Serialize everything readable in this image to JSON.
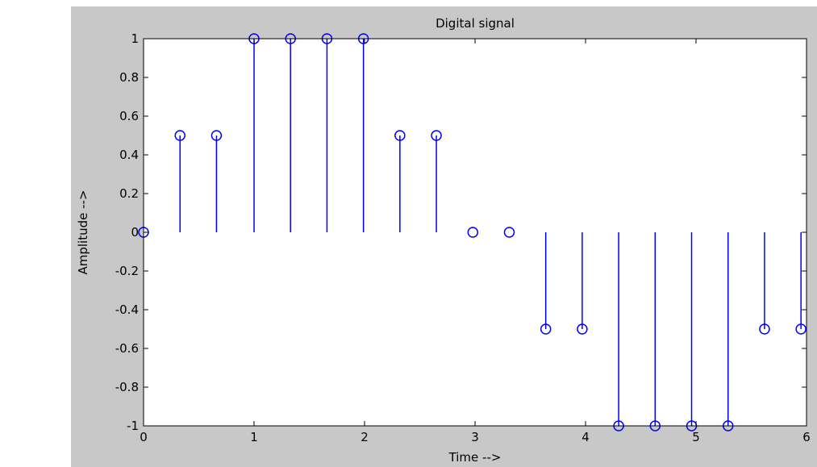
{
  "chart_data": {
    "type": "stem",
    "title": "Digital signal",
    "xlabel": "Time  -->",
    "ylabel": "Amplitude  -->",
    "xlim": [
      0,
      6
    ],
    "ylim": [
      -1,
      1
    ],
    "x_ticks": [
      0,
      1,
      2,
      3,
      4,
      5,
      6
    ],
    "y_ticks": [
      -1,
      -0.8,
      -0.6,
      -0.4,
      -0.2,
      0,
      0.2,
      0.4,
      0.6,
      0.8,
      1
    ],
    "y_tick_labels": [
      "-1",
      "-0.8",
      "-0.6",
      "-0.4",
      "-0.2",
      "0",
      "0.2",
      "0.4",
      "0.6",
      "0.8",
      "1"
    ],
    "x_tick_labels": [
      "0",
      "1",
      "2",
      "3",
      "4",
      "5",
      "6"
    ],
    "grid": false,
    "series": [
      {
        "x": [
          0,
          0.33,
          0.66,
          1.0,
          1.33,
          1.66,
          1.99,
          2.32,
          2.65,
          2.98,
          3.31,
          3.64,
          3.97,
          4.3,
          4.63,
          4.96,
          5.29,
          5.62,
          5.95
        ],
        "values": [
          0,
          0.5,
          0.5,
          1,
          1,
          1,
          1,
          0.5,
          0.5,
          0,
          0,
          -0.5,
          -0.5,
          -1,
          -1,
          -1,
          -1,
          -0.5,
          -0.5
        ]
      }
    ],
    "colors": {
      "stem": "#0000ff",
      "figure_bg": "#c8c8c8",
      "axes_bg": "#ffffff",
      "axis": "#000000"
    }
  }
}
